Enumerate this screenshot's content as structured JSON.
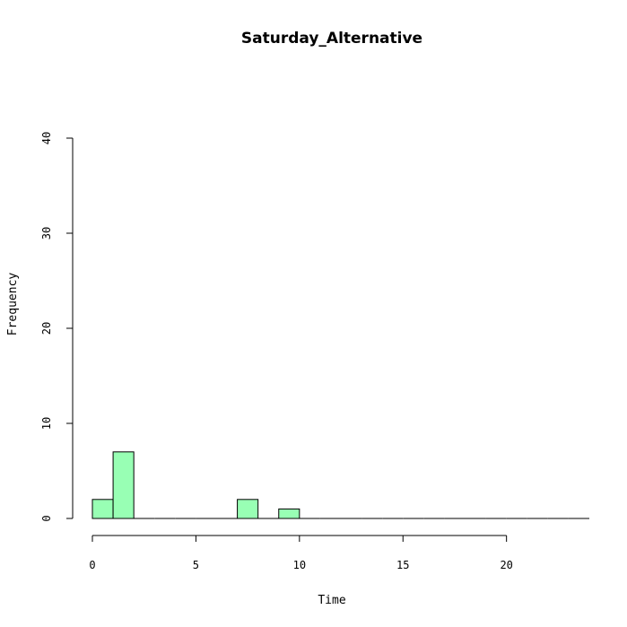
{
  "chart_data": {
    "type": "bar",
    "title": "Saturday_Alternative",
    "xlabel": "Time",
    "ylabel": "Frequency",
    "bin_width": 1,
    "bins": [
      {
        "start": 0,
        "end": 1,
        "count": 2
      },
      {
        "start": 1,
        "end": 2,
        "count": 7
      },
      {
        "start": 2,
        "end": 3,
        "count": 0
      },
      {
        "start": 3,
        "end": 4,
        "count": 0
      },
      {
        "start": 4,
        "end": 5,
        "count": 0
      },
      {
        "start": 5,
        "end": 6,
        "count": 0
      },
      {
        "start": 6,
        "end": 7,
        "count": 0
      },
      {
        "start": 7,
        "end": 8,
        "count": 2
      },
      {
        "start": 8,
        "end": 9,
        "count": 0
      },
      {
        "start": 9,
        "end": 10,
        "count": 1
      },
      {
        "start": 10,
        "end": 11,
        "count": 0
      },
      {
        "start": 11,
        "end": 12,
        "count": 0
      },
      {
        "start": 12,
        "end": 13,
        "count": 0
      },
      {
        "start": 13,
        "end": 14,
        "count": 0
      },
      {
        "start": 14,
        "end": 15,
        "count": 0
      },
      {
        "start": 15,
        "end": 16,
        "count": 0
      },
      {
        "start": 16,
        "end": 17,
        "count": 0
      },
      {
        "start": 17,
        "end": 18,
        "count": 0
      },
      {
        "start": 18,
        "end": 19,
        "count": 0
      },
      {
        "start": 19,
        "end": 20,
        "count": 0
      },
      {
        "start": 20,
        "end": 21,
        "count": 0
      },
      {
        "start": 21,
        "end": 22,
        "count": 0
      },
      {
        "start": 22,
        "end": 23,
        "count": 0
      },
      {
        "start": 23,
        "end": 24,
        "count": 0
      }
    ],
    "xlim": [
      0,
      24
    ],
    "ylim": [
      0,
      40
    ],
    "x_ticks": [
      0,
      5,
      10,
      15,
      20
    ],
    "y_ticks": [
      0,
      10,
      20,
      30,
      40
    ],
    "bar_color": "#98FFB4",
    "grid": false
  }
}
